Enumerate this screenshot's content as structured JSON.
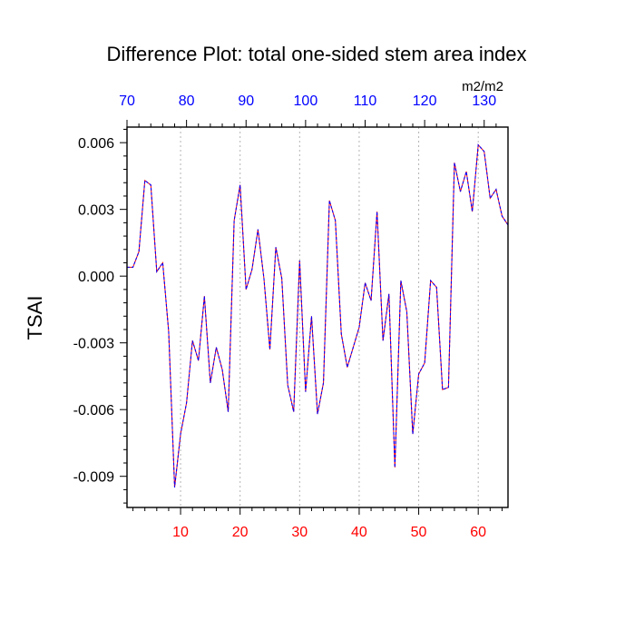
{
  "chart_data": {
    "type": "line",
    "title": "Difference Plot: total one-sided stem area index",
    "units": "m2/m2",
    "ylabel": "TSAI",
    "xlabel": "",
    "xlim": [
      1,
      65
    ],
    "ylim": [
      -0.0104,
      0.0067
    ],
    "yticks": [
      0.006,
      0.003,
      0.0,
      -0.003,
      -0.006,
      -0.009
    ],
    "ytick_labels": [
      "0.006",
      "0.003",
      "0.000",
      "-0.003",
      "-0.006",
      "-0.009"
    ],
    "xticks_bottom": [
      10,
      20,
      30,
      40,
      50,
      60
    ],
    "xtick_labels_bottom": [
      "10",
      "20",
      "30",
      "40",
      "50",
      "60"
    ],
    "xticks_top": [
      70,
      80,
      90,
      100,
      110,
      120,
      130
    ],
    "xtick_labels_top": [
      "70",
      "80",
      "90",
      "100",
      "110",
      "120",
      "130"
    ],
    "top_axis_offset": 69,
    "grid": "vertical-dotted",
    "colors": {
      "line_solid": "#ff0000",
      "line_dashed": "#0000ff",
      "bottom_tick_labels": "#ff0000",
      "top_tick_labels": "#0000ff",
      "grid": "#b4b4b4"
    },
    "x": [
      1,
      2,
      3,
      4,
      5,
      6,
      7,
      8,
      9,
      10,
      11,
      12,
      13,
      14,
      15,
      16,
      17,
      18,
      19,
      20,
      21,
      22,
      23,
      24,
      25,
      26,
      27,
      28,
      29,
      30,
      31,
      32,
      33,
      34,
      35,
      36,
      37,
      38,
      39,
      40,
      41,
      42,
      43,
      44,
      45,
      46,
      47,
      48,
      49,
      50,
      51,
      52,
      53,
      54,
      55,
      56,
      57,
      58,
      59,
      60,
      61,
      62,
      63,
      64,
      65
    ],
    "values": [
      0.0004,
      0.0004,
      0.0011,
      0.0043,
      0.0041,
      0.0002,
      0.0006,
      -0.0025,
      -0.0095,
      -0.0071,
      -0.0057,
      -0.0029,
      -0.0038,
      -0.0009,
      -0.0048,
      -0.0032,
      -0.0042,
      -0.0061,
      0.0025,
      0.0041,
      -0.0006,
      0.0003,
      0.0021,
      -0.0001,
      -0.0033,
      0.0013,
      -0.0001,
      -0.0049,
      -0.0061,
      0.0007,
      -0.0052,
      -0.0018,
      -0.0062,
      -0.0048,
      0.0034,
      0.0025,
      -0.0026,
      -0.0041,
      -0.0032,
      -0.0023,
      -0.0003,
      -0.0011,
      0.0029,
      -0.0029,
      -0.0008,
      -0.0086,
      -0.0002,
      -0.0016,
      -0.0071,
      -0.0044,
      -0.0039,
      -0.0002,
      -0.0005,
      -0.0051,
      -0.005,
      0.0051,
      0.0038,
      0.0047,
      0.0029,
      0.0059,
      0.0056,
      0.0035,
      0.0039,
      0.0027,
      0.0023
    ]
  }
}
